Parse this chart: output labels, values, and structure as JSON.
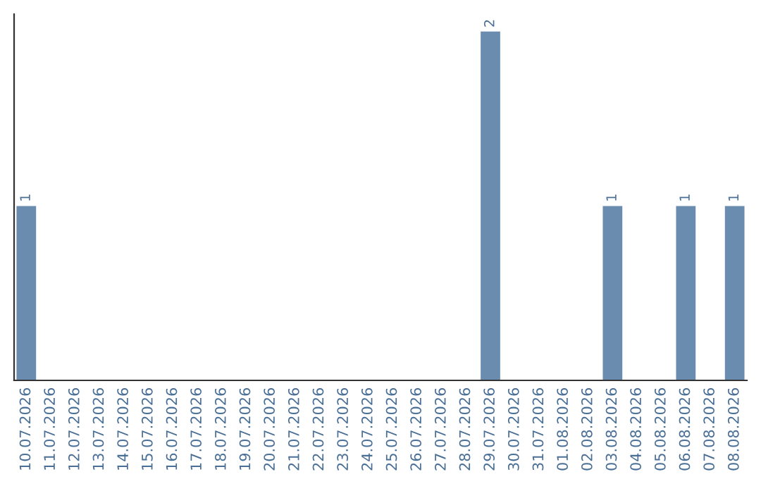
{
  "chart_data": {
    "type": "bar",
    "categories": [
      "10.07.2026",
      "11.07.2026",
      "12.07.2026",
      "13.07.2026",
      "14.07.2026",
      "15.07.2026",
      "16.07.2026",
      "17.07.2026",
      "18.07.2026",
      "19.07.2026",
      "20.07.2026",
      "21.07.2026",
      "22.07.2026",
      "23.07.2026",
      "24.07.2026",
      "25.07.2026",
      "26.07.2026",
      "27.07.2026",
      "28.07.2026",
      "29.07.2026",
      "30.07.2026",
      "31.07.2026",
      "01.08.2026",
      "02.08.2026",
      "03.08.2026",
      "04.08.2026",
      "05.08.2026",
      "06.08.2026",
      "07.08.2026",
      "08.08.2026"
    ],
    "values": [
      1,
      0,
      0,
      0,
      0,
      0,
      0,
      0,
      0,
      0,
      0,
      0,
      0,
      0,
      0,
      0,
      0,
      0,
      0,
      2,
      0,
      0,
      0,
      0,
      1,
      0,
      0,
      1,
      0,
      1
    ],
    "value_labels": [
      "1",
      null,
      null,
      null,
      null,
      null,
      null,
      null,
      null,
      null,
      null,
      null,
      null,
      null,
      null,
      null,
      null,
      null,
      null,
      "2",
      null,
      null,
      null,
      null,
      "1",
      null,
      null,
      "1",
      null,
      "1"
    ],
    "color": "#6a8caf",
    "tick_labels": "x",
    "grid": false,
    "legend": false
  }
}
